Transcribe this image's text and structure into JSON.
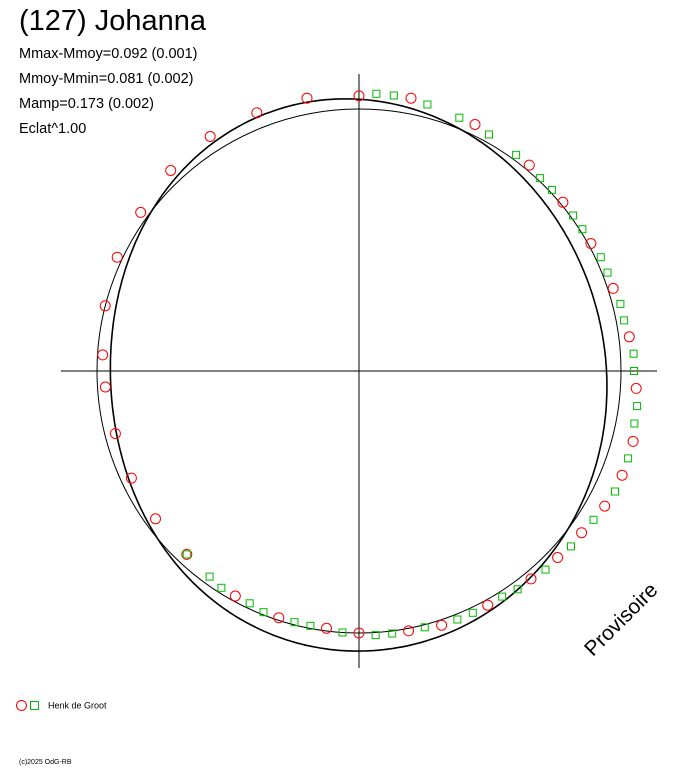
{
  "header": {
    "title": "(127) Johanna",
    "stats": [
      "Mmax-Mmoy=0.092 (0.001)",
      "Mmoy-Mmin=0.081 (0.002)",
      "Mamp=0.173 (0.002)",
      "Eclat^1.00"
    ]
  },
  "legend": {
    "label": "Henk de Groot"
  },
  "copyright": "(c)2025 OdG-RB",
  "watermark": "Provisoire",
  "colors": {
    "observer": "#ff0000",
    "second_set": "#00bb00",
    "axes": "#000000"
  },
  "chart_data": {
    "type": "polar-lightcurve",
    "reference_circle": {
      "radius": 1.0
    },
    "rotational_phase_start": 0.0,
    "radius_quantity": "brightness",
    "fit_curve": {
      "mean": 1.0,
      "harmonics": [
        {
          "order": 1,
          "amplitude": 0.02,
          "phase_deg": 150
        },
        {
          "order": 2,
          "amplitude": 0.055,
          "phase_deg": 15
        },
        {
          "order": 3,
          "amplitude": 0.008,
          "phase_deg": 80
        }
      ]
    },
    "series": [
      {
        "name": "Henk de Groot",
        "marker": "circle",
        "color": "#ff0000",
        "points": [
          [
            0.0,
            1.05
          ],
          [
            0.03,
            1.06
          ],
          [
            0.07,
            1.04
          ],
          [
            0.11,
            1.02
          ],
          [
            0.14,
            1.01
          ],
          [
            0.17,
            1.01
          ],
          [
            0.2,
            1.02
          ],
          [
            0.23,
            1.04
          ],
          [
            0.26,
            1.06
          ],
          [
            0.29,
            1.08
          ],
          [
            0.31,
            1.08
          ],
          [
            0.33,
            1.07
          ],
          [
            0.35,
            1.05
          ],
          [
            0.37,
            1.04
          ],
          [
            0.39,
            1.03
          ],
          [
            0.42,
            1.02
          ],
          [
            0.45,
            1.02
          ],
          [
            0.47,
            1.01
          ],
          [
            0.5,
            1.0
          ],
          [
            0.52,
            0.99
          ],
          [
            0.55,
            0.99
          ],
          [
            0.58,
            0.98
          ],
          [
            0.62,
            0.96
          ],
          [
            0.65,
            0.96
          ],
          [
            0.68,
            0.96
          ],
          [
            0.71,
            0.96
          ],
          [
            0.74,
            0.97
          ],
          [
            0.76,
            0.98
          ],
          [
            0.79,
            1.0
          ],
          [
            0.82,
            1.02
          ],
          [
            0.85,
            1.03
          ],
          [
            0.88,
            1.05
          ],
          [
            0.91,
            1.06
          ],
          [
            0.94,
            1.06
          ],
          [
            0.97,
            1.06
          ]
        ]
      },
      {
        "name": "",
        "marker": "square",
        "color": "#00bb00",
        "points": [
          [
            0.01,
            1.06
          ],
          [
            0.02,
            1.06
          ],
          [
            0.04,
            1.05
          ],
          [
            0.06,
            1.04
          ],
          [
            0.08,
            1.03
          ],
          [
            0.1,
            1.02
          ],
          [
            0.12,
            1.01
          ],
          [
            0.13,
            1.01
          ],
          [
            0.15,
            1.01
          ],
          [
            0.16,
            1.01
          ],
          [
            0.18,
            1.02
          ],
          [
            0.19,
            1.02
          ],
          [
            0.21,
            1.03
          ],
          [
            0.22,
            1.03
          ],
          [
            0.24,
            1.05
          ],
          [
            0.25,
            1.05
          ],
          [
            0.27,
            1.07
          ],
          [
            0.28,
            1.07
          ],
          [
            0.3,
            1.08
          ],
          [
            0.32,
            1.08
          ],
          [
            0.34,
            1.06
          ],
          [
            0.36,
            1.05
          ],
          [
            0.38,
            1.04
          ],
          [
            0.4,
            1.03
          ],
          [
            0.41,
            1.02
          ],
          [
            0.43,
            1.02
          ],
          [
            0.44,
            1.02
          ],
          [
            0.46,
            1.01
          ],
          [
            0.48,
            1.01
          ],
          [
            0.49,
            1.01
          ],
          [
            0.51,
            1.0
          ],
          [
            0.53,
            0.99
          ],
          [
            0.54,
            0.99
          ],
          [
            0.56,
            0.99
          ],
          [
            0.57,
            0.98
          ],
          [
            0.59,
            0.98
          ],
          [
            0.6,
            0.97
          ],
          [
            0.62,
            0.96
          ]
        ]
      }
    ]
  }
}
